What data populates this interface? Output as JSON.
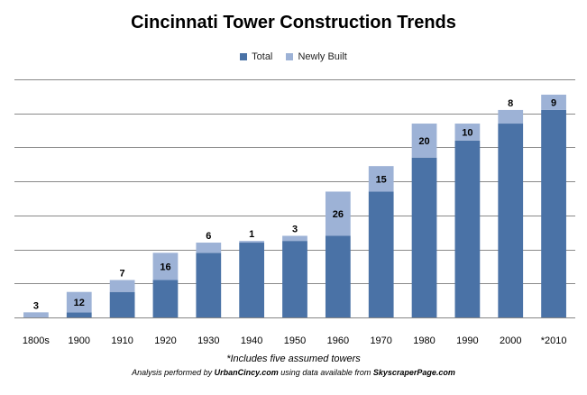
{
  "chart_data": {
    "type": "bar",
    "title": "Cincinnati Tower Construction Trends",
    "categories": [
      "1800s",
      "1900",
      "1910",
      "1920",
      "1930",
      "1940",
      "1950",
      "1960",
      "1970",
      "1980",
      "1990",
      "2000",
      "*2010"
    ],
    "series": [
      {
        "name": "Total",
        "values": [
          0,
          3,
          15,
          22,
          38,
          44,
          45,
          48,
          74,
          94,
          104,
          114,
          122
        ]
      },
      {
        "name": "Newly Built",
        "values": [
          3,
          12,
          7,
          16,
          6,
          1,
          3,
          26,
          15,
          20,
          10,
          8,
          9
        ]
      }
    ],
    "data_labels": [
      "3",
      "12",
      "7",
      "16",
      "6",
      "1",
      "3",
      "26",
      "15",
      "20",
      "10",
      "8",
      "9"
    ],
    "stacked": true,
    "ylim": [
      0,
      140
    ],
    "grid": true,
    "legend_position": "top-center",
    "colors": {
      "Total": "#4a72a6",
      "Newly Built": "#9db2d6"
    }
  },
  "footnotes": {
    "assumed": "*Includes five assumed towers",
    "credit_prefix": "Analysis performed by ",
    "credit_site": "UrbanCincy.com",
    "credit_middle": " using data available from ",
    "credit_source": "SkyscraperPage.com"
  }
}
